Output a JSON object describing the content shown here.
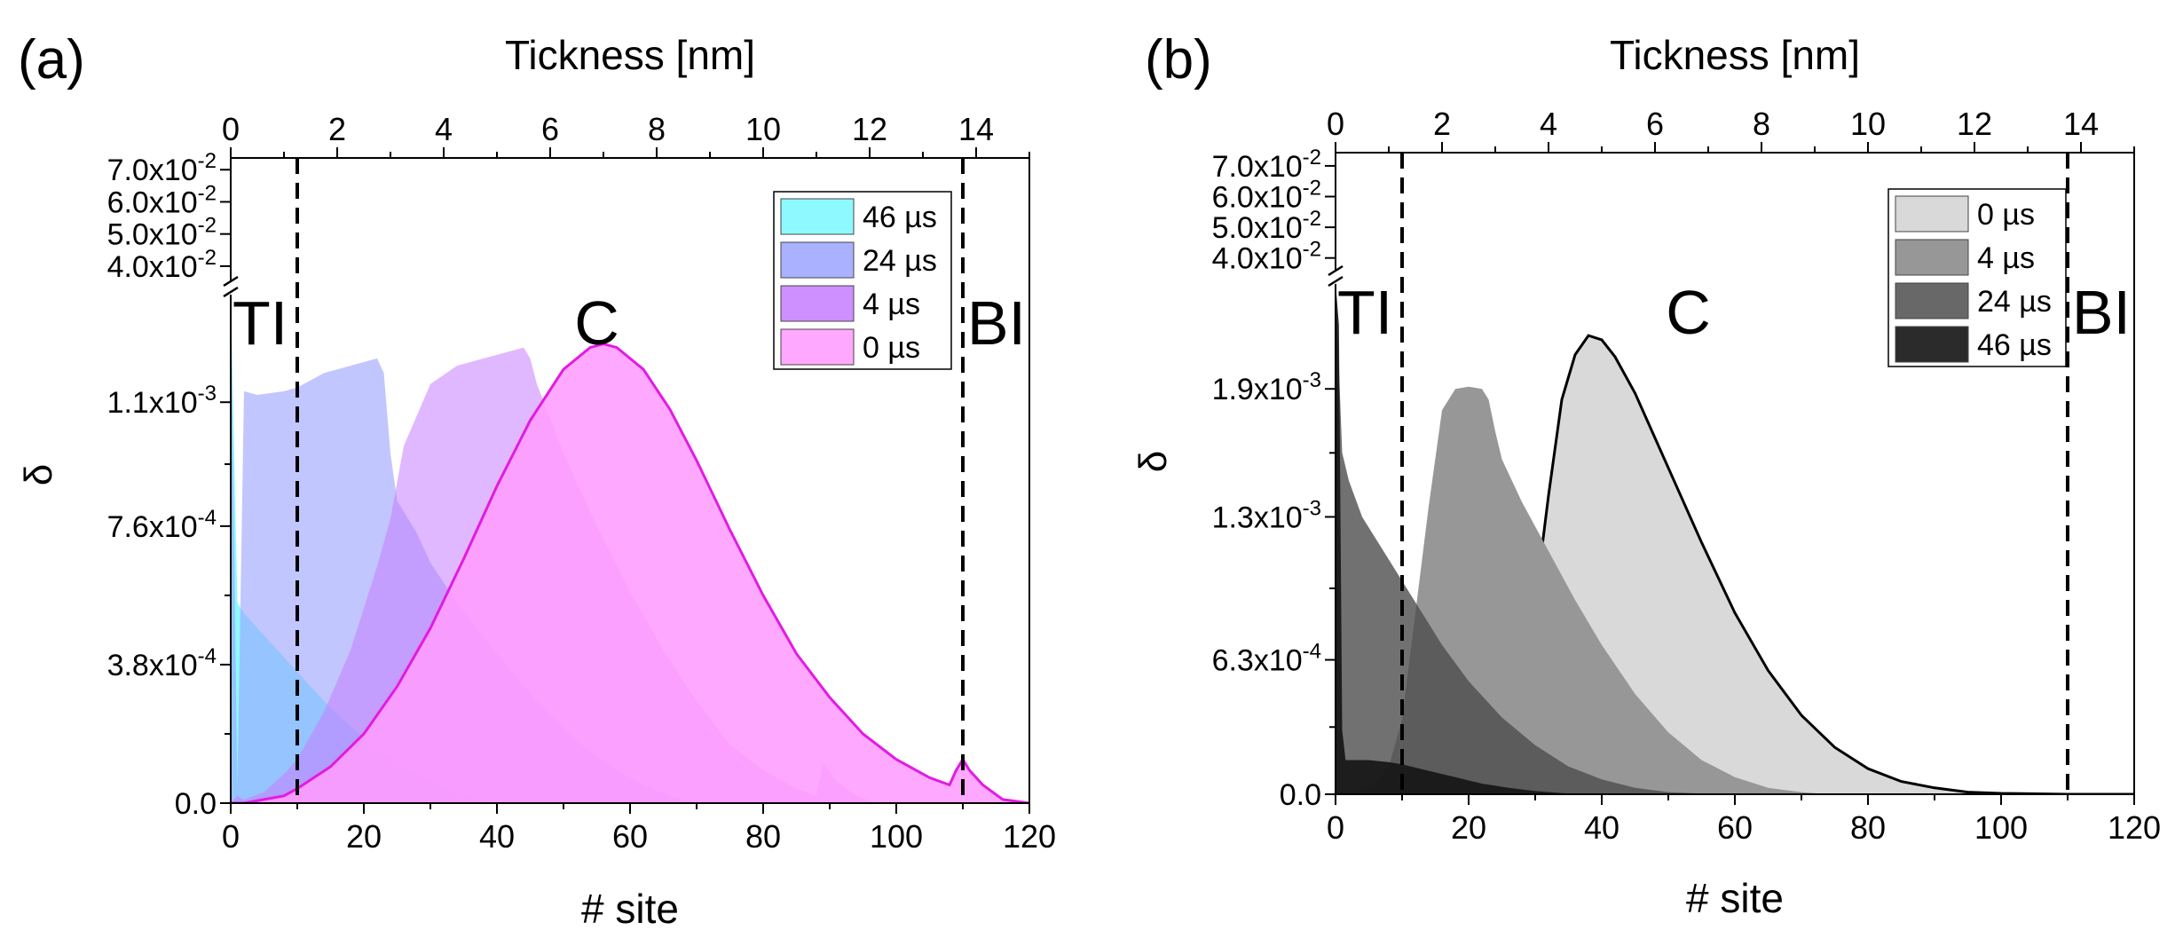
{
  "chart_data": [
    {
      "type": "area",
      "panel_label": "(a)",
      "title": "",
      "xlabel": "# site",
      "ylabel": "δ",
      "top_xlabel": "Tickness [nm]",
      "xlim": [
        0,
        120
      ],
      "top_xlim": [
        0,
        15
      ],
      "x_ticks": [
        "0",
        "20",
        "40",
        "60",
        "80",
        "100",
        "120"
      ],
      "top_x_ticks": [
        "0",
        "2",
        "4",
        "6",
        "8",
        "10",
        "12",
        "14"
      ],
      "ylim_lower": [
        0,
        0.0014
      ],
      "ylim_upper": [
        0.035,
        0.072
      ],
      "y_ticks_lower": [
        {
          "value": 0,
          "label": "0.0"
        },
        {
          "value": 0.00038,
          "label": "3.8x10-4"
        },
        {
          "value": 0.00076,
          "label": "7.6x10-4"
        },
        {
          "value": 0.0011,
          "label": "1.1x10-3"
        }
      ],
      "y_ticks_upper": [
        {
          "value": 0.04,
          "label": "4.0x10-2"
        },
        {
          "value": 0.05,
          "label": "5.0x10-2"
        },
        {
          "value": 0.06,
          "label": "6.0x10-2"
        },
        {
          "value": 0.07,
          "label": "7.0x10-2"
        }
      ],
      "regions": [
        {
          "label": "TI",
          "x": 4
        },
        {
          "label": "C",
          "x": 55
        },
        {
          "label": "BI",
          "x": 115
        }
      ],
      "boundaries": [
        10,
        110
      ],
      "legend_position": "top-right",
      "series": [
        {
          "name": "46 µs",
          "fill": "#7ef8ff",
          "opacity": 0.88,
          "stroke": "none",
          "x": [
            0,
            1,
            2,
            4,
            6,
            8,
            10,
            14,
            18,
            22,
            26,
            30,
            34,
            36,
            40
          ],
          "y": [
            0.0014,
            0.00055,
            0.00052,
            0.00048,
            0.00044,
            0.0004,
            0.00036,
            0.00028,
            0.00021,
            0.00015,
            0.0001,
            6e-05,
            3e-05,
            1e-05,
            0
          ]
        },
        {
          "name": "24 µs",
          "fill": "#9ba3ff",
          "opacity": 0.62,
          "stroke": "none",
          "x": [
            0,
            1,
            2,
            4,
            8,
            10,
            14,
            18,
            20,
            22,
            23,
            24,
            25,
            28,
            30,
            34,
            40,
            46,
            52,
            58,
            62,
            66,
            70
          ],
          "y": [
            0.0014,
            5e-05,
            0.00113,
            0.00112,
            0.00113,
            0.00114,
            0.00118,
            0.0012,
            0.00121,
            0.00122,
            0.00118,
            0.00096,
            0.00083,
            0.00074,
            0.00066,
            0.00055,
            0.00041,
            0.00028,
            0.00017,
            9e-05,
            5e-05,
            2e-05,
            0
          ]
        },
        {
          "name": "4 µs",
          "fill": "#c67dff",
          "opacity": 0.55,
          "stroke": "none",
          "x": [
            0,
            1,
            2,
            5,
            8,
            10,
            14,
            18,
            22,
            24,
            26,
            30,
            34,
            38,
            42,
            44,
            45,
            46,
            50,
            55,
            60,
            65,
            70,
            75,
            80,
            85,
            88,
            89,
            91,
            94,
            97
          ],
          "y": [
            0,
            2e-05,
            1e-05,
            3e-05,
            8e-05,
            0.00012,
            0.00025,
            0.00042,
            0.00065,
            0.00078,
            0.00098,
            0.00115,
            0.0012,
            0.00122,
            0.00124,
            0.00125,
            0.00122,
            0.00115,
            0.00096,
            0.00076,
            0.00058,
            0.00042,
            0.00028,
            0.00016,
            9e-05,
            4e-05,
            2e-05,
            0.00011,
            6e-05,
            2e-05,
            0
          ]
        },
        {
          "name": "0 µs",
          "fill": "#ff9cff",
          "opacity": 0.88,
          "stroke": "#e21be2",
          "x": [
            0,
            2,
            5,
            8,
            10,
            15,
            20,
            25,
            30,
            35,
            40,
            45,
            50,
            54,
            56,
            58,
            62,
            66,
            70,
            75,
            80,
            85,
            90,
            95,
            100,
            105,
            108,
            109,
            110,
            111,
            113,
            116,
            120
          ],
          "y": [
            0,
            0,
            1e-05,
            2e-05,
            4e-05,
            0.0001,
            0.00019,
            0.00032,
            0.00048,
            0.00067,
            0.00087,
            0.00105,
            0.00119,
            0.00125,
            0.00126,
            0.00125,
            0.00119,
            0.00108,
            0.00094,
            0.00075,
            0.00057,
            0.00041,
            0.00029,
            0.00019,
            0.00012,
            7e-05,
            5e-05,
            9e-05,
            0.00012,
            9e-05,
            5e-05,
            1e-05,
            0
          ]
        }
      ]
    },
    {
      "type": "area",
      "panel_label": "(b)",
      "title": "",
      "xlabel": "# site",
      "ylabel": "δ",
      "top_xlabel": "Tickness [nm]",
      "xlim": [
        0,
        120
      ],
      "top_xlim": [
        0,
        15
      ],
      "x_ticks": [
        "0",
        "20",
        "40",
        "60",
        "80",
        "100",
        "120"
      ],
      "top_x_ticks": [
        "0",
        "2",
        "4",
        "6",
        "8",
        "10",
        "12",
        "14"
      ],
      "ylim_lower": [
        0,
        0.0024
      ],
      "ylim_upper": [
        0.035,
        0.072
      ],
      "y_ticks_lower": [
        {
          "value": 0,
          "label": "0.0"
        },
        {
          "value": 0.00063,
          "label": "6.3x10-4"
        },
        {
          "value": 0.0013,
          "label": "1.3x10-3"
        },
        {
          "value": 0.0019,
          "label": "1.9x10-3"
        }
      ],
      "y_ticks_upper": [
        {
          "value": 0.04,
          "label": "4.0x10-2"
        },
        {
          "value": 0.05,
          "label": "5.0x10-2"
        },
        {
          "value": 0.06,
          "label": "6.0x10-2"
        },
        {
          "value": 0.07,
          "label": "7.0x10-2"
        }
      ],
      "regions": [
        {
          "label": "TI",
          "x": 5
        },
        {
          "label": "C",
          "x": 53
        },
        {
          "label": "BI",
          "x": 115
        }
      ],
      "boundaries": [
        10,
        110
      ],
      "legend_position": "top-right",
      "series": [
        {
          "name": "0 µs",
          "fill": "#d9d9d9",
          "opacity": 1,
          "stroke": "#000000",
          "x": [
            0,
            5,
            10,
            15,
            20,
            25,
            28,
            30,
            32,
            34,
            36,
            38,
            40,
            42,
            45,
            50,
            55,
            60,
            65,
            70,
            75,
            80,
            85,
            90,
            95,
            100,
            110,
            120
          ],
          "y": [
            0,
            5e-06,
            6e-06,
            1e-05,
            4e-05,
            0.0002,
            0.0005,
            0.0009,
            0.0014,
            0.00185,
            0.00206,
            0.00215,
            0.00213,
            0.00205,
            0.00188,
            0.00153,
            0.00118,
            0.00085,
            0.00058,
            0.00037,
            0.00022,
            0.00012,
            6e-05,
            3e-05,
            1e-05,
            4e-06,
            0,
            0
          ]
        },
        {
          "name": "4 µs",
          "fill": "#979797",
          "opacity": 1,
          "stroke": "none",
          "x": [
            0,
            2,
            4,
            6,
            8,
            10,
            12,
            14,
            16,
            18,
            20,
            22,
            23,
            24,
            25,
            28,
            32,
            36,
            40,
            45,
            50,
            55,
            60,
            65,
            70,
            74
          ],
          "y": [
            0,
            1e-05,
            2e-05,
            5e-05,
            0.00013,
            0.00035,
            0.00085,
            0.00135,
            0.0018,
            0.0019,
            0.00191,
            0.0019,
            0.00185,
            0.0017,
            0.00157,
            0.00137,
            0.00114,
            0.00091,
            0.0007,
            0.00047,
            0.00029,
            0.00016,
            8e-05,
            3e-05,
            1e-05,
            0
          ]
        },
        {
          "name": "24 µs",
          "fill": "#4d4d4d",
          "opacity": 0.8,
          "stroke": "none",
          "x": [
            0,
            1,
            2,
            4,
            8,
            12,
            16,
            20,
            25,
            30,
            35,
            40,
            45,
            50,
            55,
            58
          ],
          "y": [
            0.0024,
            0.0016,
            0.00147,
            0.0013,
            0.0011,
            0.0009,
            0.0007,
            0.00053,
            0.00036,
            0.00023,
            0.00013,
            7e-05,
            3e-05,
            1e-05,
            3e-06,
            0
          ]
        },
        {
          "name": "46 µs",
          "fill": "#141414",
          "opacity": 0.9,
          "stroke": "none",
          "x": [
            0,
            0.5,
            1,
            1.5,
            2,
            5,
            8,
            10,
            14,
            18,
            22,
            26,
            30,
            34,
            37
          ],
          "y": [
            0.0024,
            0.0022,
            0.0003,
            0.00016,
            0.00016,
            0.00016,
            0.00015,
            0.00014,
            0.00011,
            8e-05,
            5e-05,
            3e-05,
            1.5e-05,
            5e-06,
            0
          ]
        }
      ]
    }
  ]
}
